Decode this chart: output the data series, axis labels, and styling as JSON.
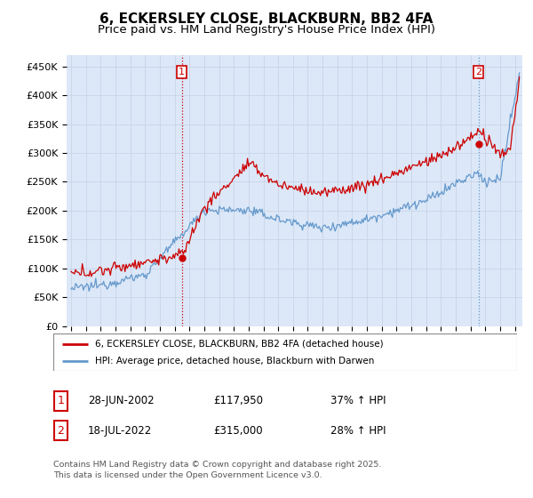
{
  "title": "6, ECKERSLEY CLOSE, BLACKBURN, BB2 4FA",
  "subtitle": "Price paid vs. HM Land Registry's House Price Index (HPI)",
  "ylabel_ticks": [
    "£0",
    "£50K",
    "£100K",
    "£150K",
    "£200K",
    "£250K",
    "£300K",
    "£350K",
    "£400K",
    "£450K"
  ],
  "ytick_values": [
    0,
    50000,
    100000,
    150000,
    200000,
    250000,
    300000,
    350000,
    400000,
    450000
  ],
  "ylim": [
    0,
    470000
  ],
  "xlim_start": 1994.7,
  "xlim_end": 2025.5,
  "sale1_x": 2002.49,
  "sale1_y": 117950,
  "sale1_label": "1",
  "sale2_x": 2022.54,
  "sale2_y": 315000,
  "sale2_label": "2",
  "hpi_color": "#6699cc",
  "price_color": "#cc0000",
  "vline_color_red": "#cc0000",
  "vline_color_blue": "#6699cc",
  "grid_color": "#c8d4e8",
  "background_color": "#dce8f8",
  "legend_label_red": "6, ECKERSLEY CLOSE, BLACKBURN, BB2 4FA (detached house)",
  "legend_label_blue": "HPI: Average price, detached house, Blackburn with Darwen",
  "table_row1": [
    "1",
    "28-JUN-2002",
    "£117,950",
    "37% ↑ HPI"
  ],
  "table_row2": [
    "2",
    "18-JUL-2022",
    "£315,000",
    "28% ↑ HPI"
  ],
  "footnote": "Contains HM Land Registry data © Crown copyright and database right 2025.\nThis data is licensed under the Open Government Licence v3.0.",
  "title_fontsize": 11,
  "subtitle_fontsize": 9.5,
  "tick_fontsize": 8
}
